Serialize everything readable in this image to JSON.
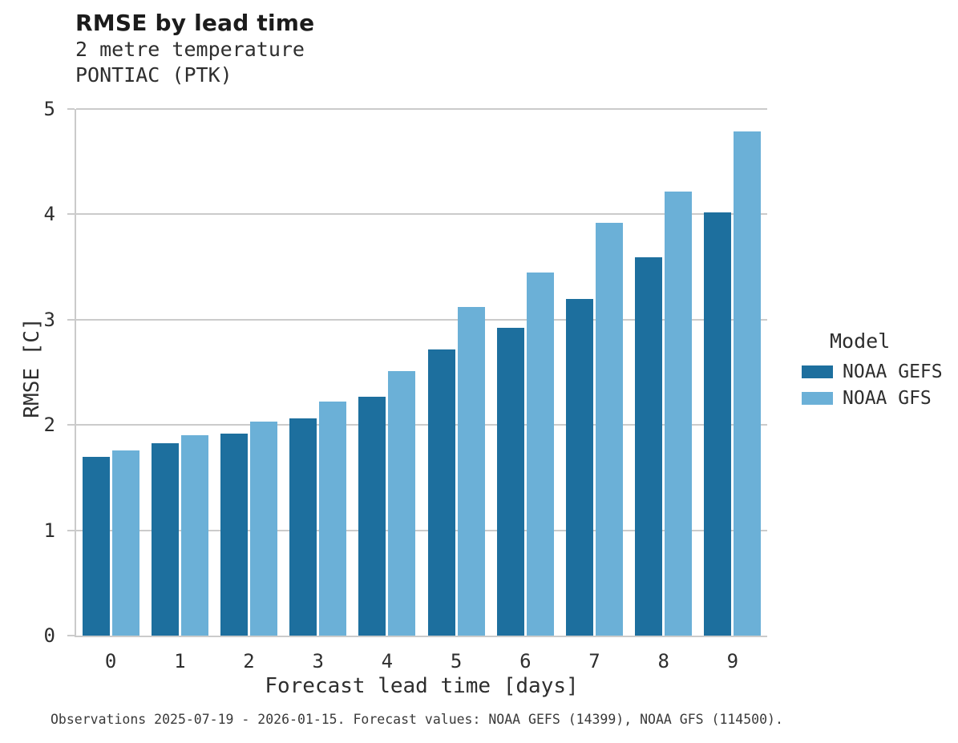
{
  "header": {
    "title": "RMSE by lead time",
    "subtitle_lines": [
      "2 metre temperature",
      "PONTIAC (PTK)"
    ]
  },
  "axes": {
    "x_title": "Forecast lead time [days]",
    "y_title": "RMSE [C]"
  },
  "legend": {
    "title": "Model",
    "entries": [
      {
        "label": "NOAA GEFS",
        "color": "#1d6f9e"
      },
      {
        "label": "NOAA GFS",
        "color": "#6bb0d7"
      }
    ]
  },
  "caption": "Observations 2025-07-19 - 2026-01-15. Forecast values: NOAA GEFS (14399), NOAA GFS (114500).",
  "chart_data": {
    "type": "bar",
    "title": "RMSE by lead time",
    "subtitle": [
      "2 metre temperature",
      "PONTIAC (PTK)"
    ],
    "categories": [
      "0",
      "1",
      "2",
      "3",
      "4",
      "5",
      "6",
      "7",
      "8",
      "9"
    ],
    "series": [
      {
        "name": "NOAA GEFS",
        "color": "#1d6f9e",
        "values": [
          1.7,
          1.83,
          1.92,
          2.06,
          2.27,
          2.72,
          2.92,
          3.2,
          3.59,
          4.02
        ]
      },
      {
        "name": "NOAA GFS",
        "color": "#6bb0d7",
        "values": [
          1.76,
          1.9,
          2.03,
          2.22,
          2.51,
          3.12,
          3.45,
          3.92,
          4.22,
          4.79
        ]
      }
    ],
    "xlabel": "Forecast lead time [days]",
    "ylabel": "RMSE [C]",
    "ylim": [
      0,
      5
    ],
    "yticks": [
      0,
      1,
      2,
      3,
      4,
      5
    ],
    "grid": "horizontal",
    "legend_position": "right",
    "legend_title": "Model",
    "caption": "Observations 2025-07-19 - 2026-01-15. Forecast values: NOAA GEFS (14399), NOAA GFS (114500)."
  }
}
